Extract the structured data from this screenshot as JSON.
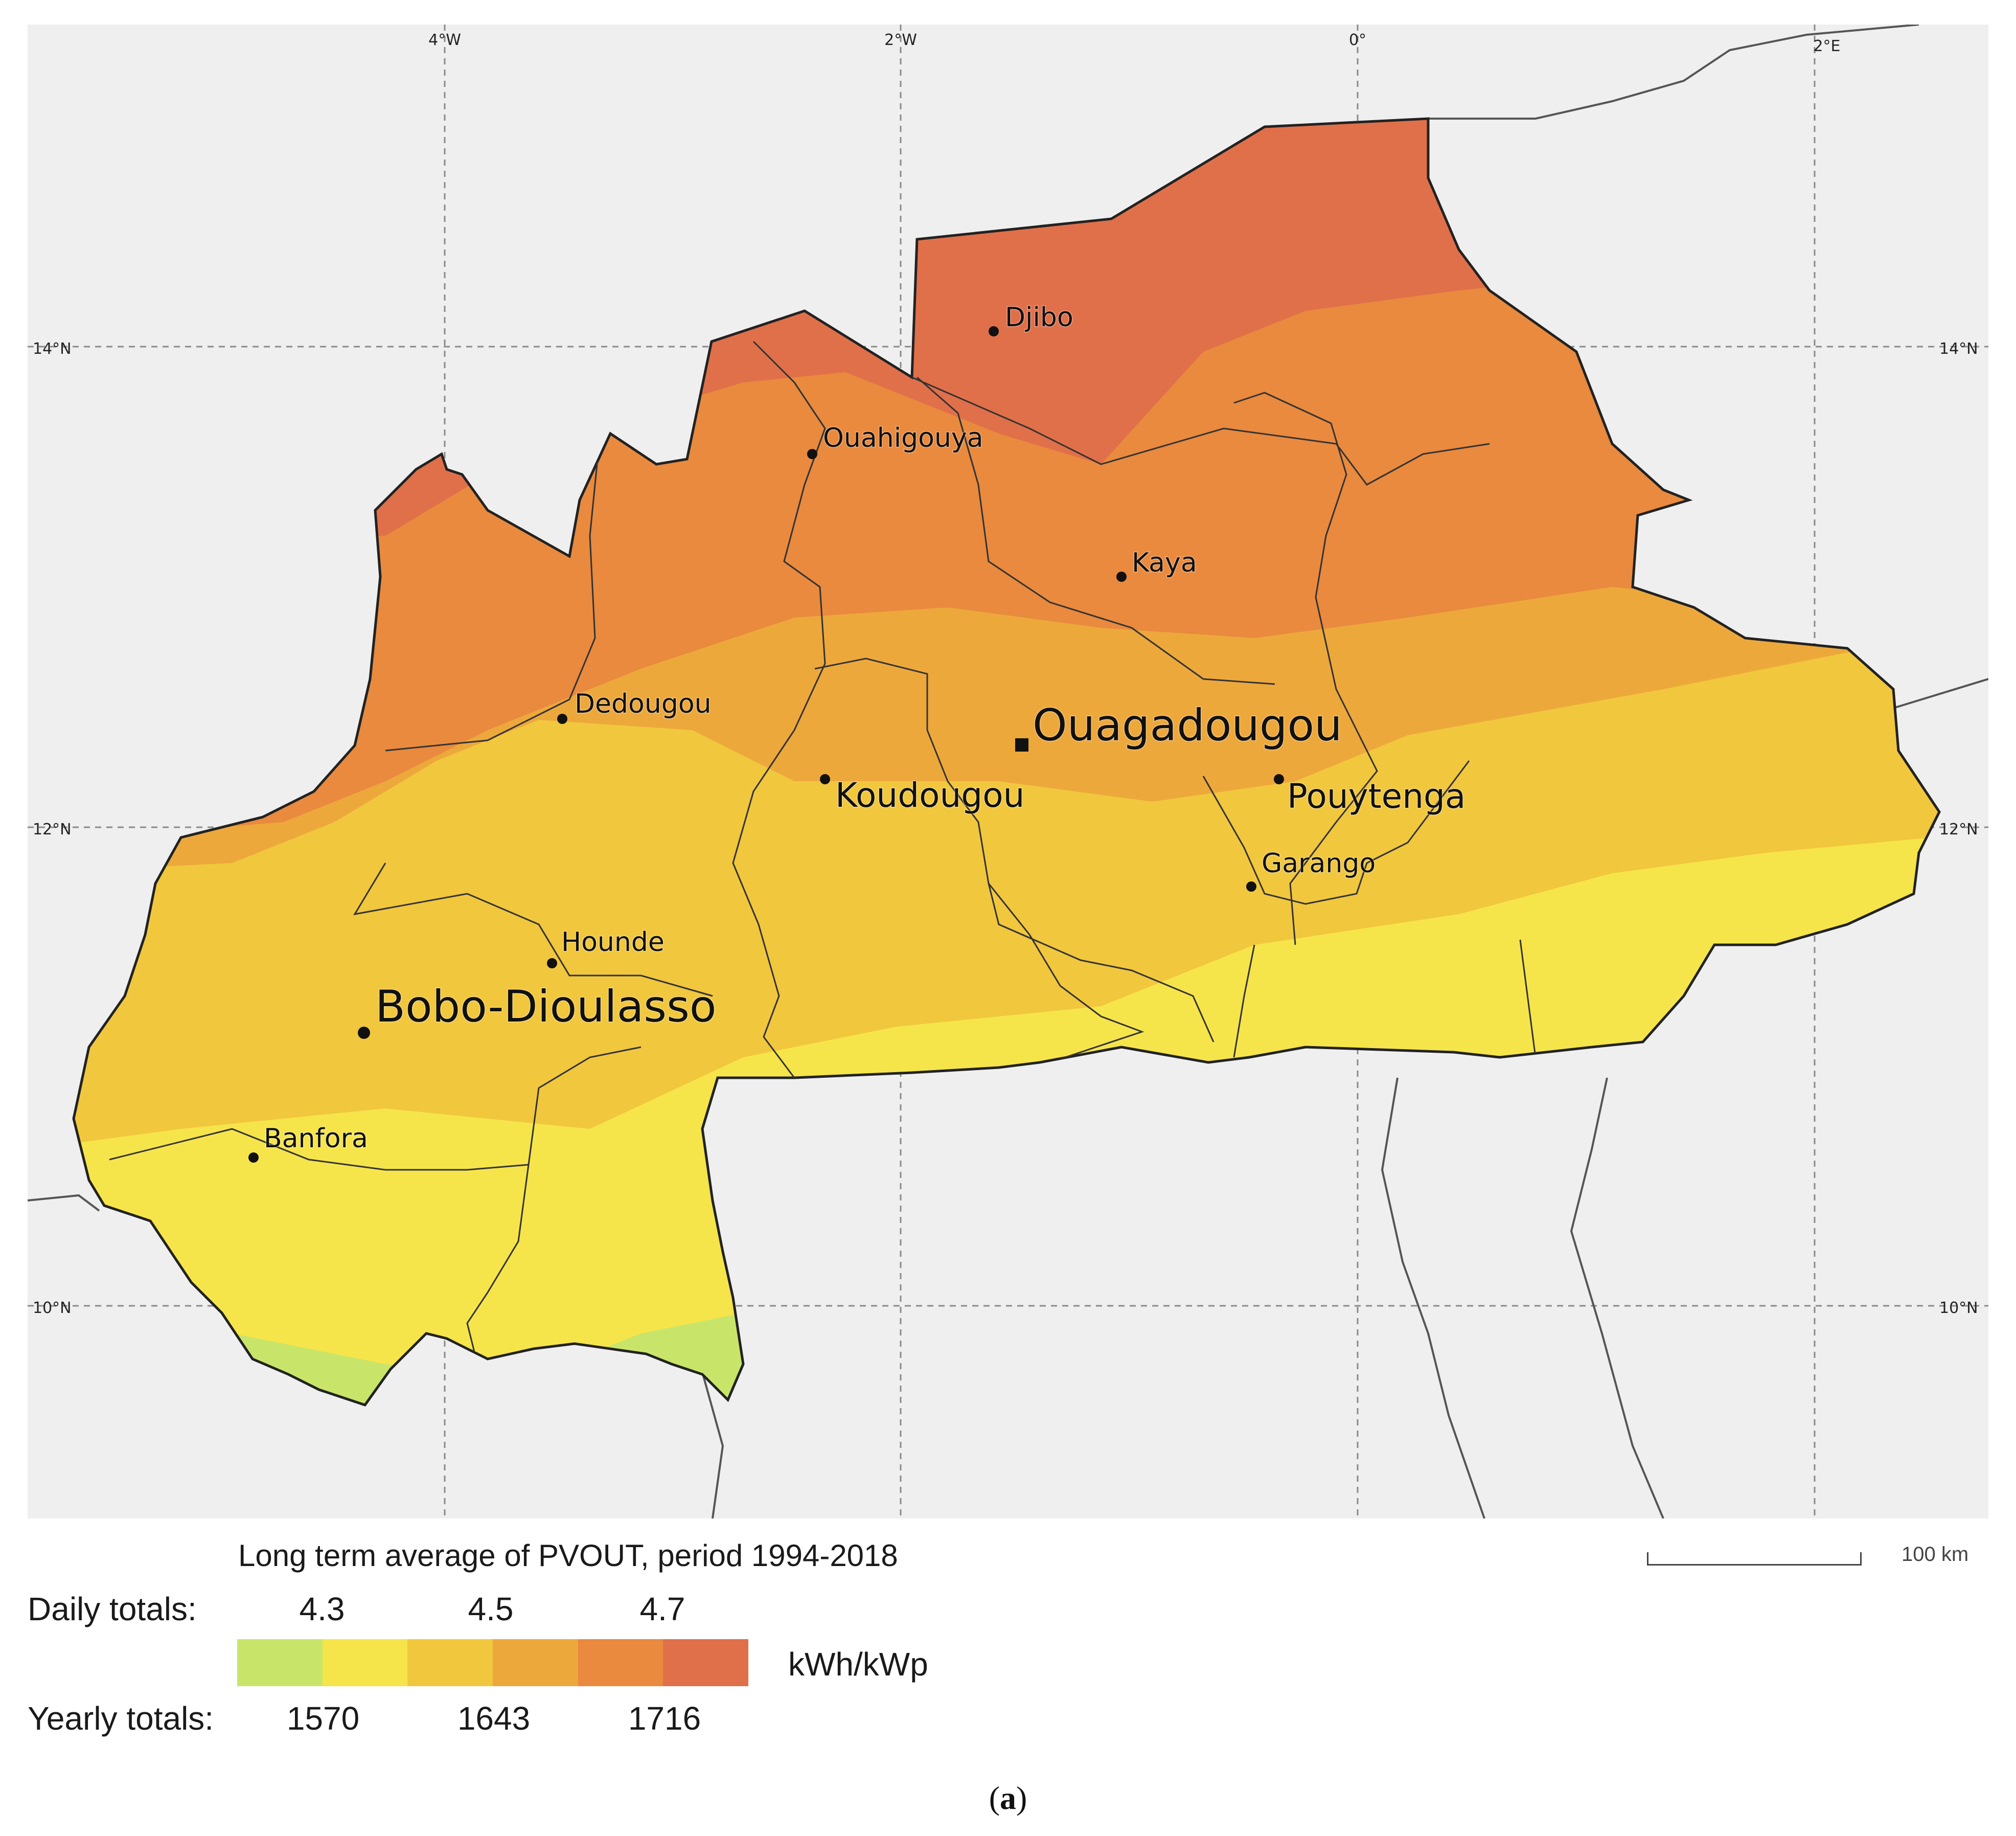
{
  "colors": {
    "background": "#efefef",
    "class_1": "#c8e56a",
    "class_2": "#f6e54a",
    "class_3": "#f1c73e",
    "class_4": "#eda83c",
    "class_5": "#e98a3e",
    "class_6": "#e0704a",
    "borders": "#333333",
    "grid": "#8a8a8a"
  },
  "map": {
    "graticule": {
      "longitude_labels": [
        "4°W",
        "2°W",
        "0°",
        "2°E"
      ],
      "latitude_labels": [
        "14°N",
        "12°N",
        "10°N"
      ]
    },
    "cities": [
      {
        "name": "Djibo",
        "kind": "town"
      },
      {
        "name": "Ouahigouya",
        "kind": "town"
      },
      {
        "name": "Kaya",
        "kind": "town"
      },
      {
        "name": "Dedougou",
        "kind": "town"
      },
      {
        "name": "Ouagadougou",
        "kind": "capital"
      },
      {
        "name": "Koudougou",
        "kind": "city"
      },
      {
        "name": "Pouytenga",
        "kind": "city"
      },
      {
        "name": "Garango",
        "kind": "town"
      },
      {
        "name": "Hounde",
        "kind": "town"
      },
      {
        "name": "Bobo-Dioulasso",
        "kind": "major-city"
      },
      {
        "name": "Banfora",
        "kind": "town"
      }
    ]
  },
  "legend": {
    "title": "Long term average of PVOUT, period 1994-2018",
    "daily_label": "Daily totals:",
    "daily_values": [
      "4.3",
      "4.5",
      "4.7"
    ],
    "yearly_label": "Yearly totals:",
    "yearly_values": [
      "1570",
      "1643",
      "1716"
    ],
    "unit": "kWh/kWp"
  },
  "scale": {
    "label": "100 km"
  },
  "caption": {
    "prefix": "(",
    "letter": "a",
    "suffix": ")"
  }
}
